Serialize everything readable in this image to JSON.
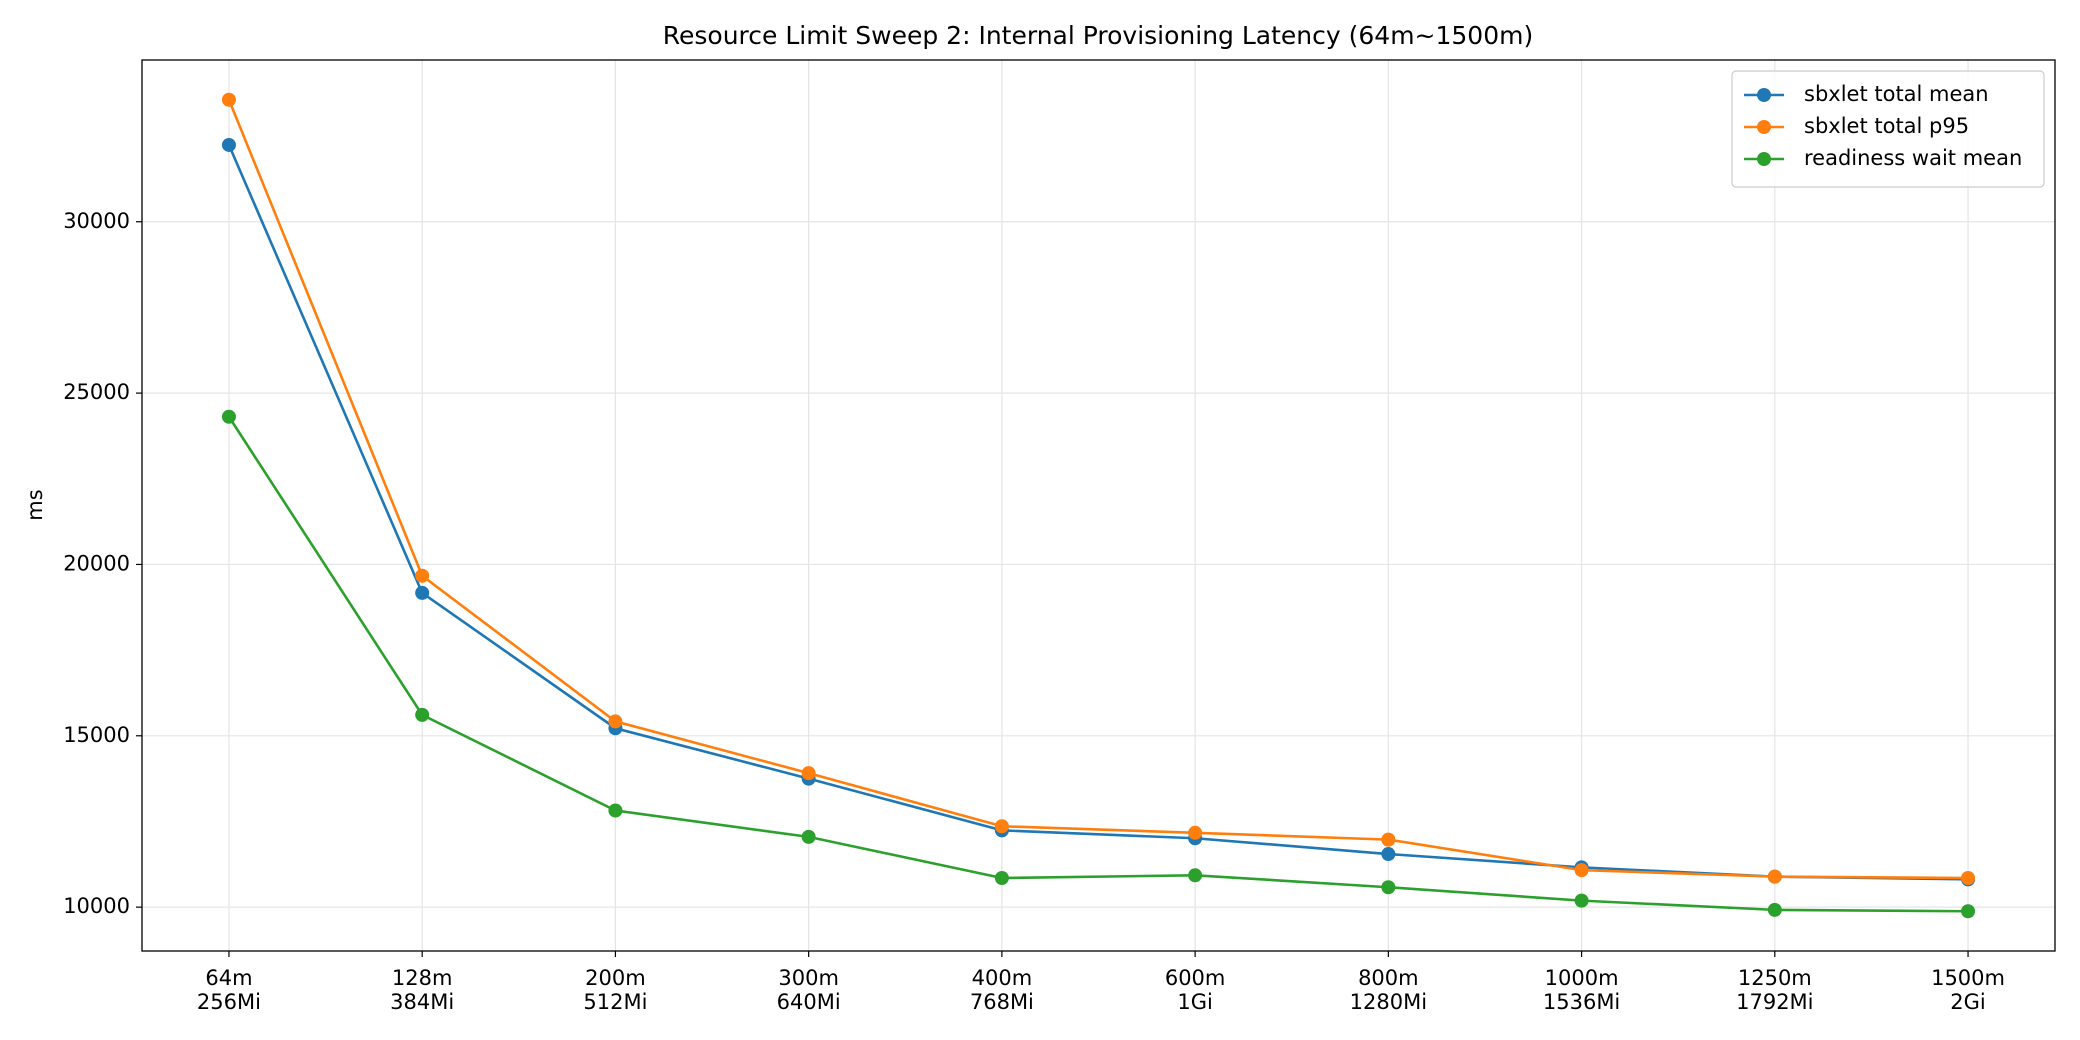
{
  "chart_data": {
    "type": "line",
    "title": "Resource Limit Sweep 2: Internal Provisioning Latency (64m~1500m)",
    "y_label": "ms",
    "categories": [
      [
        "64m",
        "256Mi"
      ],
      [
        "128m",
        "384Mi"
      ],
      [
        "200m",
        "512Mi"
      ],
      [
        "300m",
        "640Mi"
      ],
      [
        "400m",
        "768Mi"
      ],
      [
        "600m",
        "1Gi"
      ],
      [
        "800m",
        "1280Mi"
      ],
      [
        "1000m",
        "1536Mi"
      ],
      [
        "1250m",
        "1792Mi"
      ],
      [
        "1500m",
        "2Gi"
      ]
    ],
    "series": [
      {
        "name": "sbxlet total mean",
        "color": "#1f77b4",
        "values": [
          32240,
          19170,
          15220,
          13750,
          12240,
          12010,
          11550,
          11160,
          10890,
          10810
        ]
      },
      {
        "name": "sbxlet total p95",
        "color": "#ff7f0e",
        "values": [
          33560,
          19670,
          15420,
          13910,
          12360,
          12170,
          11970,
          11080,
          10890,
          10850
        ]
      },
      {
        "name": "readiness wait mean",
        "color": "#2ca02c",
        "values": [
          24310,
          15610,
          12820,
          12050,
          10850,
          10930,
          10580,
          10190,
          9920,
          9880
        ]
      }
    ],
    "ylim": [
      8720,
      34720
    ],
    "yticks": [
      10000,
      15000,
      20000,
      25000,
      30000
    ],
    "grid": true,
    "legend": "upper right"
  }
}
